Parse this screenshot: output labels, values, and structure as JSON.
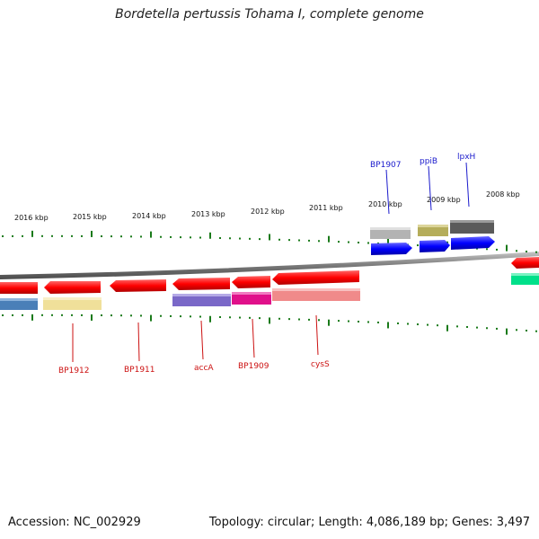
{
  "title": "Bordetella pertussis Tohama I, complete genome",
  "footer": {
    "accession": "Accession: NC_002929",
    "summary": "Topology: circular; Length: 4,086,189 bp; Genes: 3,497"
  },
  "ruler": {
    "tick_color": "#1a7a1a",
    "labels": [
      "2016 kbp",
      "2015 kbp",
      "2014 kbp",
      "2013 kbp",
      "2012 kbp",
      "2011 kbp",
      "2010 kbp",
      "2009 kbp",
      "2008 kbp"
    ]
  },
  "forward_labels": [
    {
      "name": "BP1907",
      "color": "#1a1acc"
    },
    {
      "name": "ppiB",
      "color": "#1a1acc"
    },
    {
      "name": "lpxH",
      "color": "#1a1acc"
    }
  ],
  "reverse_labels": [
    {
      "name": "BP1912",
      "color": "#cc1111"
    },
    {
      "name": "BP1911",
      "color": "#cc1111"
    },
    {
      "name": "accA",
      "color": "#cc1111"
    },
    {
      "name": "BP1909",
      "color": "#cc1111"
    },
    {
      "name": "cysS",
      "color": "#cc1111"
    }
  ]
}
